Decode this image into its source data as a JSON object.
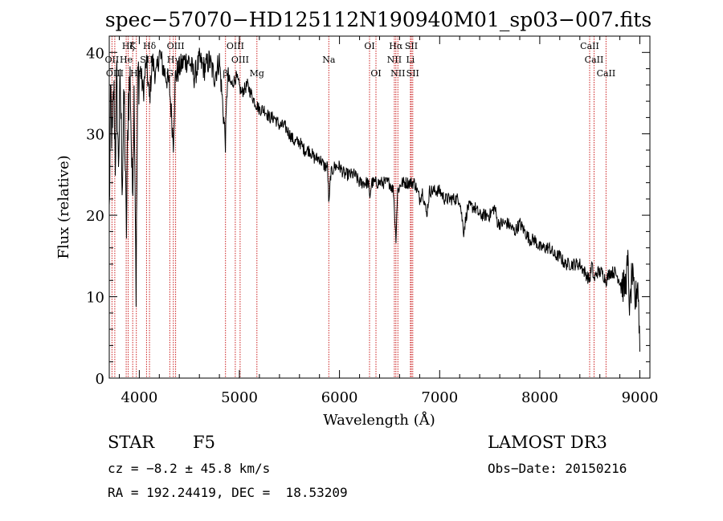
{
  "chart_data": {
    "type": "line",
    "title": "spec−57070−HD125112N190940M01_sp03−007.fits",
    "xlabel": "Wavelength (Å)",
    "ylabel": "Flux (relative)",
    "xlim": [
      3700,
      9100
    ],
    "ylim": [
      0,
      42
    ],
    "xticks": [
      4000,
      5000,
      6000,
      7000,
      8000,
      9000
    ],
    "yticks": [
      0,
      10,
      20,
      30,
      40
    ],
    "grid": false,
    "spectrum_anchors": [
      [
        3700,
        20
      ],
      [
        3715,
        35
      ],
      [
        3730,
        28
      ],
      [
        3745,
        36
      ],
      [
        3760,
        27
      ],
      [
        3775,
        37
      ],
      [
        3790,
        26
      ],
      [
        3810,
        36
      ],
      [
        3830,
        24
      ],
      [
        3850,
        35
      ],
      [
        3870,
        17
      ],
      [
        3890,
        34
      ],
      [
        3910,
        37
      ],
      [
        3930,
        22
      ],
      [
        3950,
        36
      ],
      [
        3968,
        11
      ],
      [
        3985,
        37
      ],
      [
        4010,
        38
      ],
      [
        4040,
        35
      ],
      [
        4070,
        39
      ],
      [
        4102,
        34
      ],
      [
        4130,
        39
      ],
      [
        4170,
        37
      ],
      [
        4200,
        40
      ],
      [
        4240,
        38
      ],
      [
        4300,
        36
      ],
      [
        4340,
        29
      ],
      [
        4360,
        37
      ],
      [
        4400,
        38
      ],
      [
        4450,
        39
      ],
      [
        4500,
        39
      ],
      [
        4550,
        37
      ],
      [
        4600,
        39
      ],
      [
        4650,
        38
      ],
      [
        4700,
        39
      ],
      [
        4750,
        37
      ],
      [
        4800,
        39
      ],
      [
        4861,
        29
      ],
      [
        4880,
        37
      ],
      [
        4920,
        36
      ],
      [
        4970,
        37
      ],
      [
        5020,
        35
      ],
      [
        5080,
        36
      ],
      [
        5150,
        34
      ],
      [
        5200,
        33
      ],
      [
        5250,
        33
      ],
      [
        5300,
        32
      ],
      [
        5350,
        32
      ],
      [
        5400,
        31
      ],
      [
        5450,
        31
      ],
      [
        5500,
        30
      ],
      [
        5550,
        29
      ],
      [
        5600,
        29
      ],
      [
        5650,
        28
      ],
      [
        5700,
        28
      ],
      [
        5750,
        27
      ],
      [
        5800,
        27
      ],
      [
        5850,
        26
      ],
      [
        5880,
        26
      ],
      [
        5895,
        21
      ],
      [
        5910,
        25
      ],
      [
        5950,
        26
      ],
      [
        6000,
        26
      ],
      [
        6050,
        25
      ],
      [
        6100,
        25
      ],
      [
        6150,
        25
      ],
      [
        6200,
        24
      ],
      [
        6250,
        24
      ],
      [
        6290,
        24
      ],
      [
        6300,
        22
      ],
      [
        6320,
        24
      ],
      [
        6400,
        24
      ],
      [
        6450,
        24
      ],
      [
        6500,
        24
      ],
      [
        6540,
        23
      ],
      [
        6563,
        17
      ],
      [
        6580,
        23
      ],
      [
        6620,
        24
      ],
      [
        6680,
        24
      ],
      [
        6750,
        24
      ],
      [
        6800,
        22
      ],
      [
        6830,
        23
      ],
      [
        6870,
        20
      ],
      [
        6900,
        23
      ],
      [
        6950,
        23
      ],
      [
        7000,
        23
      ],
      [
        7050,
        22
      ],
      [
        7100,
        22
      ],
      [
        7150,
        22
      ],
      [
        7200,
        22
      ],
      [
        7240,
        18
      ],
      [
        7280,
        21
      ],
      [
        7350,
        21
      ],
      [
        7400,
        20
      ],
      [
        7450,
        20
      ],
      [
        7500,
        20
      ],
      [
        7550,
        21
      ],
      [
        7580,
        19
      ],
      [
        7620,
        19
      ],
      [
        7680,
        19
      ],
      [
        7750,
        18
      ],
      [
        7800,
        19
      ],
      [
        7850,
        18
      ],
      [
        7900,
        17
      ],
      [
        7950,
        17
      ],
      [
        8000,
        16
      ],
      [
        8050,
        16
      ],
      [
        8100,
        16
      ],
      [
        8150,
        15
      ],
      [
        8200,
        15
      ],
      [
        8250,
        14
      ],
      [
        8300,
        14
      ],
      [
        8350,
        14
      ],
      [
        8400,
        14
      ],
      [
        8450,
        13
      ],
      [
        8498,
        12
      ],
      [
        8520,
        14
      ],
      [
        8542,
        12
      ],
      [
        8570,
        13
      ],
      [
        8620,
        13
      ],
      [
        8662,
        12
      ],
      [
        8700,
        13
      ],
      [
        8750,
        13
      ],
      [
        8800,
        12
      ],
      [
        8850,
        11
      ],
      [
        8880,
        14
      ],
      [
        8900,
        8
      ],
      [
        8920,
        13
      ],
      [
        8950,
        9
      ],
      [
        8980,
        12
      ],
      [
        9000,
        4
      ]
    ],
    "spectral_lines": [
      {
        "label": "Hζ",
        "wavelength": 3889,
        "row": 0
      },
      {
        "label": "K",
        "wavelength": 3934,
        "row": 0
      },
      {
        "label": "Hδ",
        "wavelength": 4102,
        "row": 0
      },
      {
        "label": "OIII",
        "wavelength": 4363,
        "row": 0
      },
      {
        "label": "OIII",
        "wavelength": 4959,
        "row": 0
      },
      {
        "label": "OI",
        "wavelength": 6300,
        "row": 0
      },
      {
        "label": "Hα",
        "wavelength": 6563,
        "row": 0
      },
      {
        "label": "SII",
        "wavelength": 6717,
        "row": 0
      },
      {
        "label": "CaII",
        "wavelength": 8498,
        "row": 0
      },
      {
        "label": "OII",
        "wavelength": 3727,
        "row": 1
      },
      {
        "label": "He",
        "wavelength": 3869,
        "row": 1
      },
      {
        "label": "SII",
        "wavelength": 4072,
        "row": 1
      },
      {
        "label": "Hγ",
        "wavelength": 4340,
        "row": 1
      },
      {
        "label": "OIII",
        "wavelength": 5007,
        "row": 1
      },
      {
        "label": "Na",
        "wavelength": 5893,
        "row": 1
      },
      {
        "label": "NII",
        "wavelength": 6548,
        "row": 1
      },
      {
        "label": "Li",
        "wavelength": 6708,
        "row": 1
      },
      {
        "label": "CaII",
        "wavelength": 8542,
        "row": 1
      },
      {
        "label": "OIII",
        "wavelength": 3755,
        "row": 2
      },
      {
        "label": "Hε",
        "wavelength": 3970,
        "row": 2
      },
      {
        "label": "G",
        "wavelength": 4305,
        "row": 2
      },
      {
        "label": "β",
        "wavelength": 4861,
        "row": 2
      },
      {
        "label": "Mg",
        "wavelength": 5175,
        "row": 2
      },
      {
        "label": "OI",
        "wavelength": 6364,
        "row": 2
      },
      {
        "label": "NII",
        "wavelength": 6583,
        "row": 2
      },
      {
        "label": "SII",
        "wavelength": 6731,
        "row": 2
      },
      {
        "label": "CaII",
        "wavelength": 8662,
        "row": 2
      }
    ],
    "line_marker_color": "#cc2020"
  },
  "info": {
    "object_class": "STAR",
    "subclass": "F5",
    "survey": "LAMOST DR3",
    "cz": "cz = −8.2 ± 45.8 km/s",
    "obs_date": "Obs−Date: 20150216",
    "coords": "RA = 192.24419, DEC =  18.53209"
  }
}
